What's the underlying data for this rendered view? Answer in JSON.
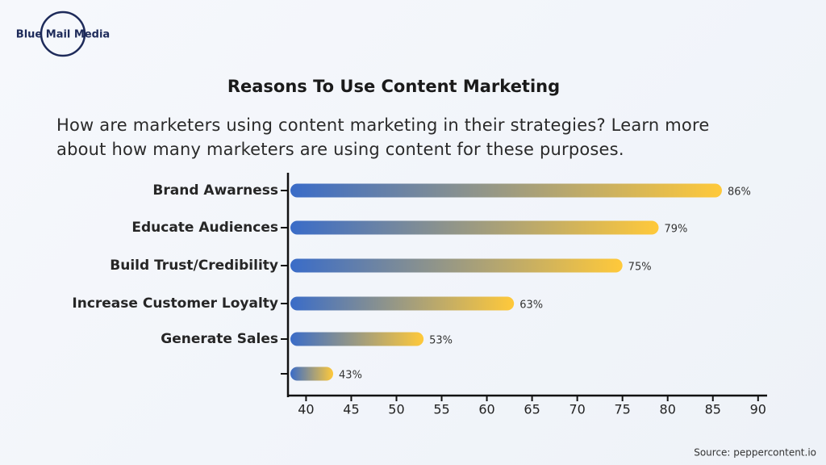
{
  "brand": "Blue Mail Media",
  "chart_data": {
    "type": "bar",
    "orientation": "horizontal",
    "title": "Reasons To Use Content Marketing",
    "subtitle": "How are marketers using content marketing in their strategies? Learn more about how many marketers are using content for these purposes.",
    "categories": [
      "Brand Awarness",
      "Educate Audiences",
      "Build Trust/Credibility",
      "Increase Customer Loyalty",
      "Generate Sales",
      null
    ],
    "values": [
      86,
      79,
      75,
      63,
      53,
      43
    ],
    "value_labels": [
      "86%",
      "79%",
      "75%",
      "63%",
      "53%",
      "43%"
    ],
    "gradient": [
      "#3a6cc8",
      "#ffc93a"
    ],
    "xlim": [
      38,
      91
    ],
    "xticks": [
      40,
      45,
      50,
      55,
      60,
      65,
      70,
      75,
      80,
      85,
      90
    ],
    "source": "Source: peppercontent.io"
  }
}
